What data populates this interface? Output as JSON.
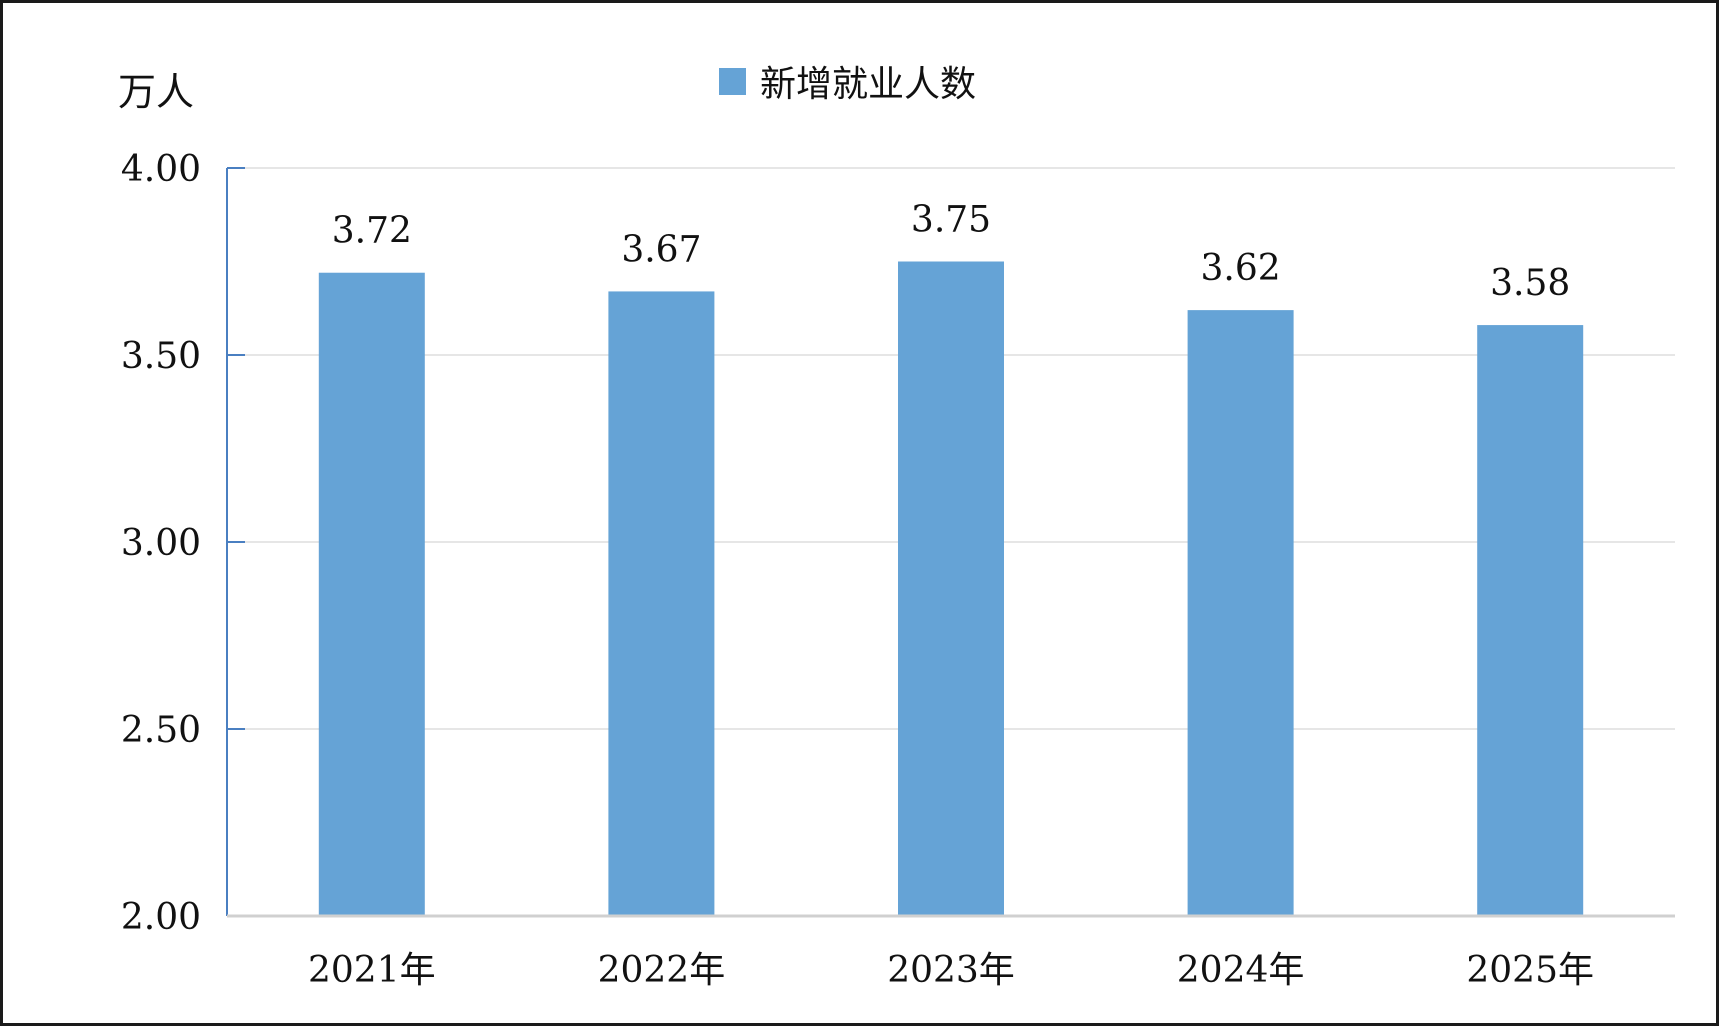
{
  "chart_data": {
    "type": "bar",
    "ylabel": "万人",
    "categories": [
      "2021年",
      "2022年",
      "2023年",
      "2024年",
      "2025年"
    ],
    "series": [
      {
        "name": "新增就业人数",
        "values": [
          3.72,
          3.67,
          3.75,
          3.62,
          3.58
        ],
        "labels": [
          "3.72",
          "3.67",
          "3.75",
          "3.62",
          "3.58"
        ],
        "color": "#65a3d6"
      }
    ],
    "ylim": [
      2.0,
      4.0
    ],
    "yticks": [
      2.0,
      2.5,
      3.0,
      3.5,
      4.0
    ],
    "ytick_labels": [
      "2.00",
      "2.50",
      "3.00",
      "3.50",
      "4.00"
    ],
    "grid": true,
    "legend": "top-center",
    "axis_color": "#4a7fc1",
    "grid_color": "#e6e6e6"
  }
}
